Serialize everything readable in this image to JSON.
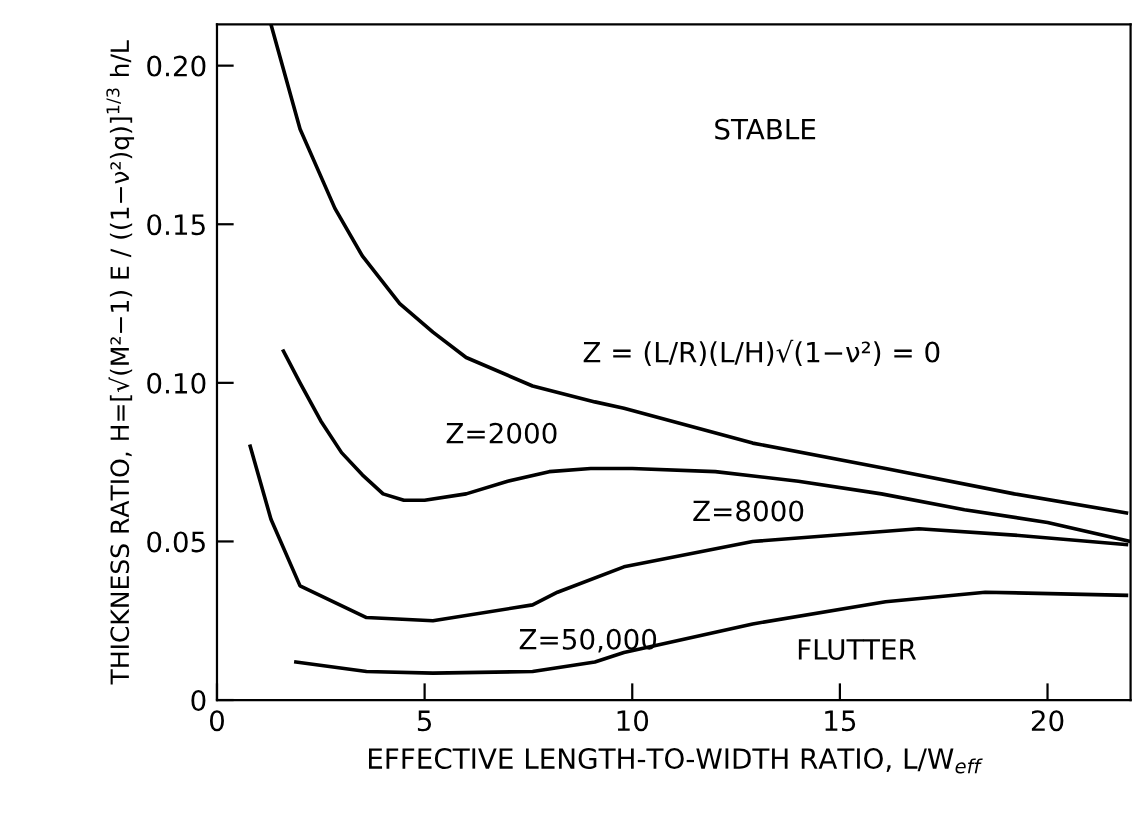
{
  "chart_data": {
    "type": "line",
    "xlabel": "EFFECTIVE LENGTH-TO-WIDTH RATIO, L/W$_{eff}$",
    "ylabel": "THICKNESS RATIO, H=[√(M²−1) E / ((1−ν²)q)]$^{1/3}$ h/L",
    "xlim": [
      0,
      22
    ],
    "ylim": [
      0,
      0.213
    ],
    "xticks": [
      0,
      5,
      10,
      15,
      20
    ],
    "yticks": [
      0,
      0.05,
      {
        "value": 0.1,
        "label": "0.10"
      },
      0.15,
      {
        "value": 0.2,
        "label": "0.20"
      }
    ],
    "grid": false,
    "legend": false,
    "marker": "none",
    "line_style": "solid",
    "series": [
      {
        "name": "Z = (L/R)(L/H)√(1−ν²) = 0",
        "color": "#000000",
        "x": [
          1.3,
          2.0,
          2.84,
          3.5,
          4.4,
          5.2,
          6.0,
          7.6,
          9.1,
          9.8,
          12.9,
          16.1,
          19.2,
          21.9
        ],
        "values": [
          0.213,
          0.18,
          0.155,
          0.14,
          0.125,
          0.116,
          0.108,
          0.099,
          0.094,
          0.092,
          0.081,
          0.073,
          0.065,
          0.059
        ]
      },
      {
        "name": "Z=2000",
        "color": "#000000",
        "x": [
          1.6,
          2.0,
          2.5,
          3.0,
          3.5,
          4.0,
          4.5,
          5.0,
          6.0,
          7.0,
          8.0,
          9.0,
          10.0,
          12.0,
          14.0,
          16.0,
          18.0,
          20.0,
          22.0
        ],
        "values": [
          0.11,
          0.1,
          0.088,
          0.078,
          0.071,
          0.065,
          0.063,
          0.063,
          0.065,
          0.069,
          0.072,
          0.073,
          0.073,
          0.072,
          0.069,
          0.065,
          0.06,
          0.056,
          0.05
        ]
      },
      {
        "name": "Z=8000",
        "color": "#000000",
        "x": [
          0.8,
          1.3,
          2.0,
          3.6,
          5.2,
          7.6,
          8.2,
          9.8,
          12.9,
          16.9,
          19.2,
          21.9
        ],
        "values": [
          0.08,
          0.057,
          0.036,
          0.026,
          0.025,
          0.03,
          0.034,
          0.042,
          0.05,
          0.054,
          0.052,
          0.049
        ]
      },
      {
        "name": "Z=50,000",
        "color": "#000000",
        "x": [
          1.9,
          3.6,
          5.2,
          7.6,
          9.1,
          9.8,
          12.9,
          16.1,
          18.5,
          21.9
        ],
        "values": [
          0.012,
          0.009,
          0.0085,
          0.009,
          0.012,
          0.015,
          0.024,
          0.031,
          0.034,
          0.033
        ]
      }
    ],
    "annotations": [
      "STABLE",
      "FLUTTER"
    ]
  }
}
